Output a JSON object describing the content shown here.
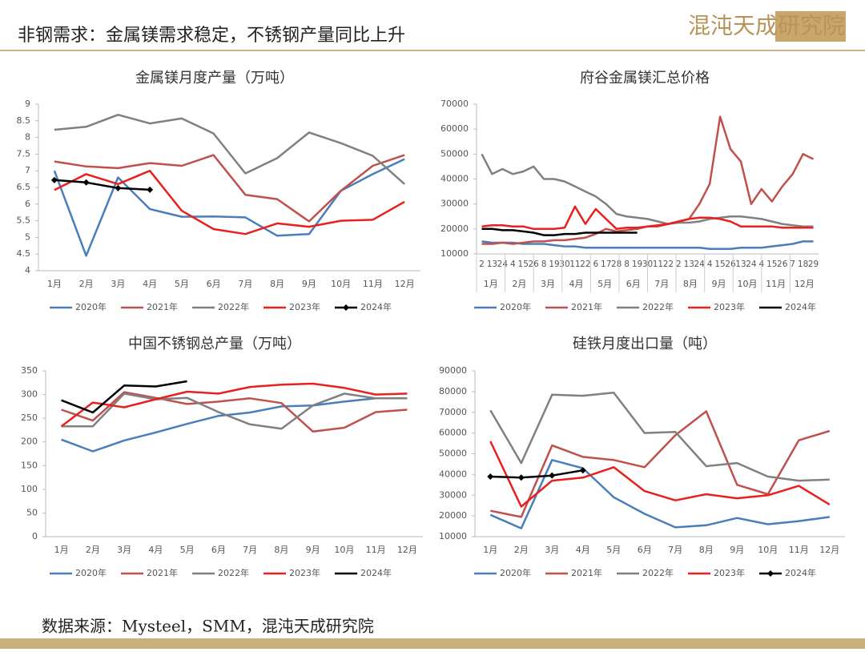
{
  "header": {
    "title": "非钢需求：金属镁需求稳定，不锈钢产量同比上升",
    "logo": "混沌天成研究院"
  },
  "source": "数据来源：Mysteel，SMM，混沌天成研究院",
  "chart_data": [
    {
      "type": "line",
      "title": "金属镁月度产量（万吨）",
      "categories": [
        "1月",
        "2月",
        "3月",
        "4月",
        "5月",
        "6月",
        "7月",
        "8月",
        "9月",
        "10月",
        "11月",
        "12月"
      ],
      "ylim": [
        4,
        9
      ],
      "yticks": [
        4,
        4.5,
        5,
        5.5,
        6,
        6.5,
        7,
        7.5,
        8,
        8.5,
        9
      ],
      "series": [
        {
          "name": "2020年",
          "color": "#4a7ebb",
          "values": [
            7.0,
            4.45,
            6.8,
            5.85,
            5.62,
            5.63,
            5.6,
            5.05,
            5.1,
            6.4,
            6.9,
            7.35
          ]
        },
        {
          "name": "2021年",
          "color": "#c0504d",
          "values": [
            7.28,
            7.13,
            7.08,
            7.23,
            7.15,
            7.47,
            6.28,
            6.15,
            5.48,
            6.4,
            7.15,
            7.47
          ]
        },
        {
          "name": "2022年",
          "color": "#808080",
          "values": [
            8.23,
            8.32,
            8.68,
            8.42,
            8.57,
            8.12,
            6.92,
            7.38,
            8.15,
            7.83,
            7.45,
            6.6
          ]
        },
        {
          "name": "2023年",
          "color": "#e8201e",
          "values": [
            6.42,
            6.9,
            6.6,
            7.0,
            5.8,
            5.25,
            5.1,
            5.42,
            5.32,
            5.5,
            5.53,
            6.07
          ]
        },
        {
          "name": "2024年",
          "color": "#000000",
          "marker": "diamond",
          "values": [
            6.72,
            6.65,
            6.48,
            6.43,
            null,
            null,
            null,
            null,
            null,
            null,
            null,
            null
          ]
        }
      ]
    },
    {
      "type": "line",
      "title": "府谷金属镁汇总价格",
      "categories": [
        "2",
        "13",
        "24",
        "4",
        "15",
        "26",
        "8",
        "19",
        "30",
        "11",
        "22",
        "6",
        "17",
        "28",
        "8",
        "19",
        "30",
        "11",
        "22",
        "2",
        "13",
        "24",
        "4",
        "15",
        "26",
        "13",
        "24",
        "4",
        "15",
        "26",
        "7",
        "18",
        "29"
      ],
      "month_labels": [
        "1月",
        "2月",
        "3月",
        "4月",
        "5月",
        "6月",
        "7月",
        "8月",
        "9月",
        "10月",
        "11月",
        "12月"
      ],
      "ylim": [
        10000,
        70000
      ],
      "yticks": [
        10000,
        20000,
        30000,
        40000,
        50000,
        60000,
        70000
      ],
      "series": [
        {
          "name": "2020年",
          "color": "#4a7ebb",
          "values": [
            15000,
            14500,
            14500,
            14500,
            14000,
            14000,
            14000,
            13500,
            13000,
            13000,
            12500,
            12500,
            12500,
            12500,
            12500,
            12500,
            12500,
            12500,
            12500,
            12500,
            12500,
            12500,
            12000,
            12000,
            12000,
            12500,
            12500,
            12500,
            13000,
            13500,
            14000,
            15000,
            15000
          ]
        },
        {
          "name": "2021年",
          "color": "#c0504d",
          "values": [
            14000,
            14000,
            14500,
            14000,
            14500,
            15000,
            15000,
            15500,
            15500,
            16000,
            16500,
            18000,
            20000,
            19000,
            19500,
            20000,
            21000,
            21000,
            22000,
            23000,
            24000,
            30000,
            38000,
            65000,
            52000,
            47000,
            30000,
            36000,
            31000,
            37000,
            42000,
            50000,
            48000
          ]
        },
        {
          "name": "2022年",
          "color": "#808080",
          "values": [
            50000,
            42000,
            44000,
            42000,
            43000,
            45000,
            40000,
            40000,
            39000,
            37000,
            35000,
            33000,
            30000,
            26000,
            25000,
            24500,
            24000,
            23000,
            22000,
            22500,
            22500,
            23000,
            24000,
            24500,
            25000,
            25000,
            24500,
            24000,
            23000,
            22000,
            21500,
            21000,
            21000
          ]
        },
        {
          "name": "2023年",
          "color": "#e8201e",
          "values": [
            21000,
            21500,
            21500,
            21000,
            21000,
            20000,
            20000,
            20000,
            20500,
            29000,
            22000,
            28000,
            24000,
            20000,
            20500,
            20500,
            21000,
            21500,
            22000,
            23000,
            24000,
            24500,
            24500,
            24000,
            23000,
            21000,
            21000,
            21000,
            21000,
            20500,
            20500,
            20500,
            20500
          ]
        },
        {
          "name": "2024年",
          "color": "#000000",
          "values": [
            20000,
            20000,
            19500,
            19500,
            19000,
            18500,
            17500,
            17500,
            18000,
            18000,
            18500,
            18500,
            18500,
            18500,
            18500,
            18500,
            null,
            null,
            null,
            null,
            null,
            null,
            null,
            null,
            null,
            null,
            null,
            null,
            null,
            null,
            null,
            null,
            null
          ]
        }
      ]
    },
    {
      "type": "line",
      "title": "中国不锈钢总产量（万吨）",
      "categories": [
        "1月",
        "2月",
        "3月",
        "4月",
        "5月",
        "6月",
        "7月",
        "8月",
        "9月",
        "10月",
        "11月",
        "12月"
      ],
      "ylim": [
        0,
        350
      ],
      "yticks": [
        0,
        50,
        100,
        150,
        200,
        250,
        300,
        350
      ],
      "series": [
        {
          "name": "2020年",
          "color": "#4a7ebb",
          "values": [
            205,
            180,
            203,
            220,
            238,
            255,
            262,
            275,
            277,
            285,
            292,
            292
          ]
        },
        {
          "name": "2021年",
          "color": "#c0504d",
          "values": [
            268,
            245,
            305,
            293,
            280,
            285,
            292,
            282,
            222,
            230,
            263,
            268
          ]
        },
        {
          "name": "2022年",
          "color": "#808080",
          "values": [
            233,
            233,
            302,
            290,
            293,
            263,
            237,
            228,
            277,
            302,
            292,
            292
          ]
        },
        {
          "name": "2023年",
          "color": "#e8201e",
          "values": [
            233,
            283,
            273,
            290,
            306,
            302,
            316,
            321,
            323,
            314,
            300,
            302
          ]
        },
        {
          "name": "2024年",
          "color": "#000000",
          "values": [
            288,
            262,
            319,
            317,
            328,
            null,
            null,
            null,
            null,
            null,
            null,
            null
          ]
        }
      ]
    },
    {
      "type": "line",
      "title": "硅铁月度出口量（吨）",
      "categories": [
        "1月",
        "2月",
        "3月",
        "4月",
        "5月",
        "6月",
        "7月",
        "8月",
        "9月",
        "10月",
        "11月",
        "12月"
      ],
      "ylim": [
        10000,
        90000
      ],
      "yticks": [
        10000,
        20000,
        30000,
        40000,
        50000,
        60000,
        70000,
        80000,
        90000
      ],
      "series": [
        {
          "name": "2020年",
          "color": "#4a7ebb",
          "values": [
            20500,
            14000,
            47000,
            43000,
            29000,
            21000,
            14500,
            15500,
            19000,
            16000,
            17500,
            19500
          ]
        },
        {
          "name": "2021年",
          "color": "#c0504d",
          "values": [
            22500,
            19500,
            54000,
            48500,
            47000,
            43500,
            59000,
            70500,
            35000,
            30500,
            56500,
            61000
          ]
        },
        {
          "name": "2022年",
          "color": "#808080",
          "values": [
            71000,
            45500,
            78500,
            78000,
            79500,
            60000,
            60500,
            44000,
            45500,
            39000,
            37000,
            37500
          ]
        },
        {
          "name": "2023年",
          "color": "#e8201e",
          "values": [
            56000,
            24500,
            37000,
            38500,
            43500,
            32000,
            27500,
            30500,
            28500,
            30000,
            34500,
            25500
          ]
        },
        {
          "name": "2024年",
          "color": "#000000",
          "marker": "diamond",
          "values": [
            39000,
            38500,
            39500,
            42000,
            null,
            null,
            null,
            null,
            null,
            null,
            null,
            null
          ]
        }
      ]
    }
  ]
}
